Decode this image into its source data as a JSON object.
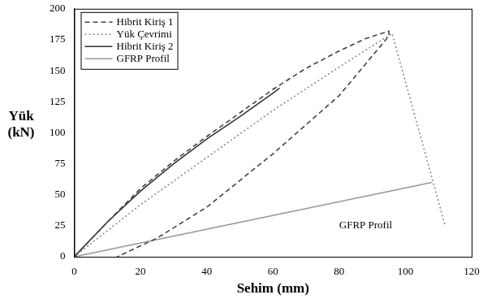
{
  "chart_data": {
    "type": "line",
    "x_label": "Sehim (mm)",
    "y_label": "Yük (kN)",
    "xlim": [
      0,
      120
    ],
    "xticks": [
      0,
      20,
      40,
      60,
      80,
      100,
      120
    ],
    "ylim": [
      0,
      200
    ],
    "yticks": [
      0,
      25,
      50,
      75,
      100,
      125,
      150,
      175,
      200
    ],
    "grid": false,
    "legend": "upper left",
    "series": [
      {
        "name": "Hibrit Kiriş 1",
        "color": "#444444",
        "line_style": "dashed",
        "x": [
          0,
          10,
          20,
          30,
          40,
          50,
          60,
          70,
          80,
          88,
          95,
          95,
          80,
          60,
          40,
          25,
          13
        ],
        "values": [
          0,
          28,
          55,
          77,
          97,
          116,
          135,
          152,
          166,
          176,
          182,
          178,
          130,
          83,
          40,
          15,
          0
        ]
      },
      {
        "name": "Yük Çevrimi",
        "color": "#888888",
        "line_style": "dotted",
        "x": [
          0,
          20,
          40,
          60,
          80,
          90,
          96,
          112
        ],
        "values": [
          0,
          42,
          80,
          118,
          153,
          170,
          180,
          25
        ]
      },
      {
        "name": "Hibrit Kiriş 2",
        "color": "#333333",
        "line_style": "solid",
        "x": [
          0,
          10,
          20,
          30,
          40,
          50,
          60,
          62
        ],
        "values": [
          0,
          28,
          53,
          75,
          95,
          113,
          132,
          136
        ]
      },
      {
        "name": "GFRP Profil",
        "color": "#999999",
        "line_style": "solid",
        "x": [
          0,
          108
        ],
        "values": [
          0,
          60
        ]
      }
    ],
    "annotations": [
      {
        "text": "GFRP Profil",
        "x": 88,
        "y": 25
      }
    ]
  }
}
